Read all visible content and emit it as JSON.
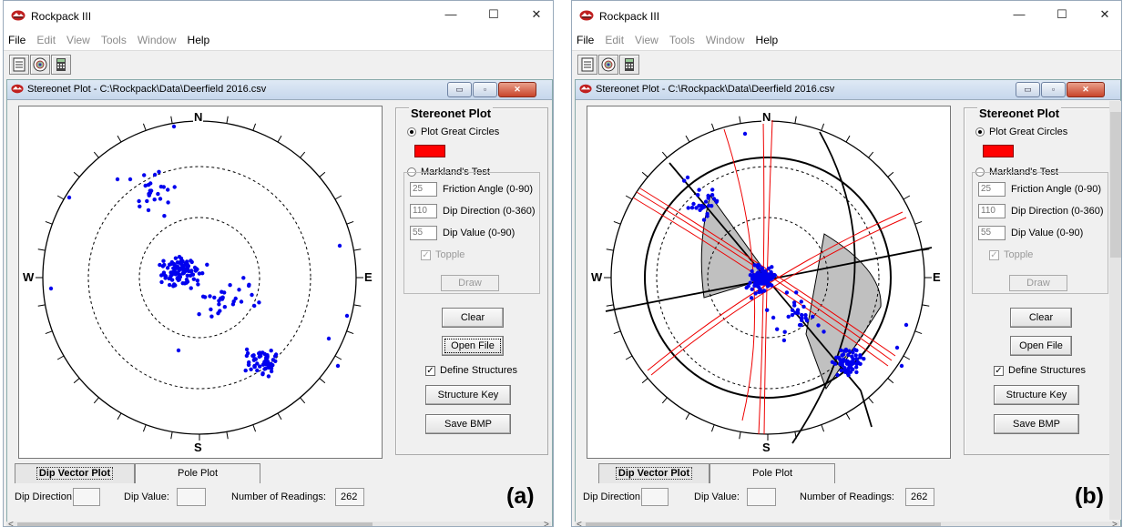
{
  "window": {
    "app_title": "Rockpack III",
    "controls": {
      "minimize": "—",
      "maximize": "☐",
      "close": "✕"
    }
  },
  "menu": [
    "File",
    "Edit",
    "View",
    "Tools",
    "Window",
    "Help"
  ],
  "child": {
    "title": "Stereonet Plot - C:\\Rockpack\\Data\\Deerfield 2016.csv",
    "controls": {
      "minimize": "▭",
      "maximize": "▫",
      "close": "✕"
    }
  },
  "plot": {
    "north": "N",
    "south": "S",
    "east": "E",
    "west": "W"
  },
  "panel": {
    "title": "Stereonet Plot",
    "plot_great_circles": "Plot Great Circles",
    "markland": "Markland's Test",
    "friction_value": "25",
    "friction_label": "Friction Angle (0-90)",
    "dipdir_value": "110",
    "dipdir_label": "Dip Direction (0-360)",
    "dipval_value": "55",
    "dipval_label": "Dip Value (0-90)",
    "topple": "Topple",
    "draw": "Draw",
    "clear": "Clear",
    "open_file": "Open File",
    "define_structures": "Define Structures",
    "structure_key": "Structure Key",
    "save_bmp": "Save BMP",
    "great_circle_color": "#ff0000"
  },
  "tabs": {
    "dip_vector": "Dip Vector Plot",
    "pole": "Pole Plot"
  },
  "status": {
    "dip_direction_label": "Dip Direction:",
    "dip_value_label": "Dip Value:",
    "readings_label": "Number of Readings:",
    "readings_value": "262"
  },
  "figure_labels": {
    "a": "(a)",
    "b": "(b)"
  },
  "colors": {
    "points": "#0000ee",
    "great_circle": "#ff0000",
    "wedge_fill": "#c0c0c0"
  }
}
